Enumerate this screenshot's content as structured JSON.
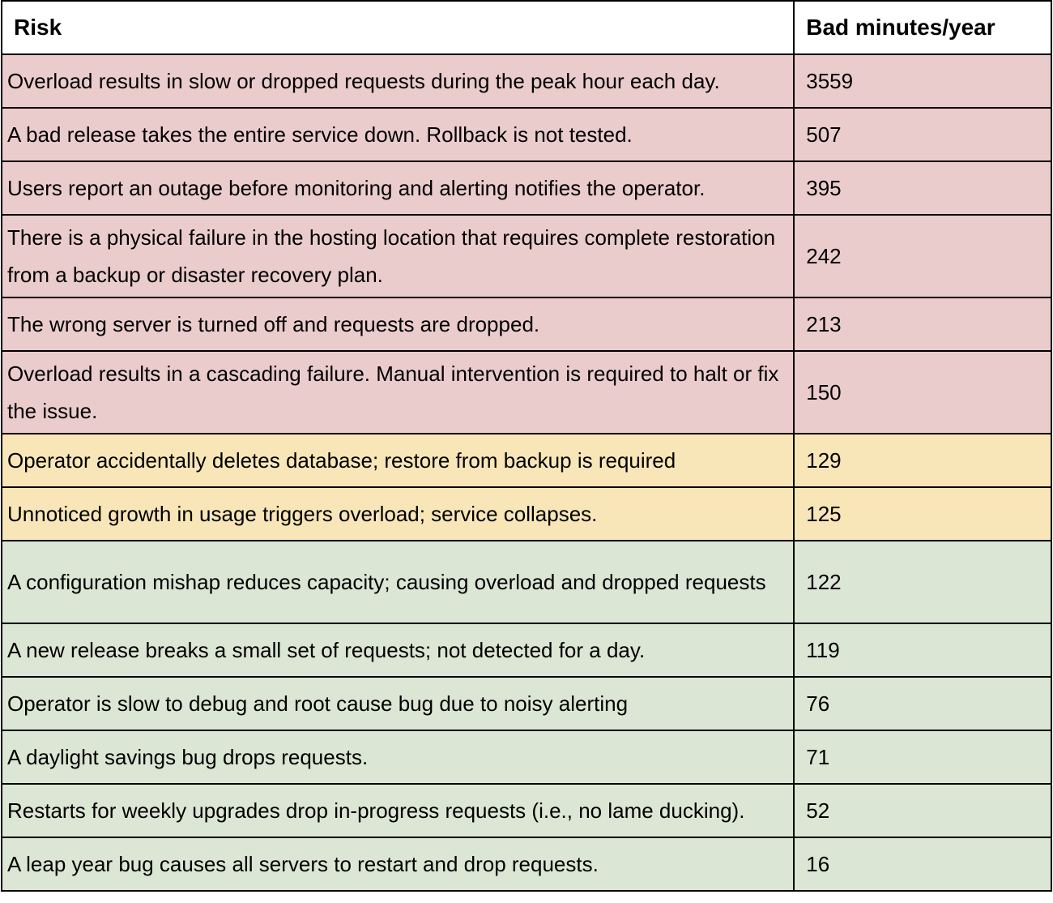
{
  "header": {
    "risk": "Risk",
    "value": "Bad minutes/year"
  },
  "colors": {
    "red": "#ebcccc",
    "yellow": "#f8e6b8",
    "green": "#dce6d4"
  },
  "rows": [
    {
      "risk": "Overload results in slow or dropped requests during the peak hour each day.",
      "value": "3559",
      "level": "red"
    },
    {
      "risk": "A bad release takes the entire service down. Rollback is not tested.",
      "value": "507",
      "level": "red"
    },
    {
      "risk": "Users report an outage before monitoring and alerting notifies the operator.",
      "value": "395",
      "level": "red"
    },
    {
      "risk": "There is a physical failure in the hosting location that requires complete restoration from a backup or disaster recovery plan.",
      "value": "242",
      "level": "red"
    },
    {
      "risk": "The wrong server is turned off and requests are dropped.",
      "value": "213",
      "level": "red"
    },
    {
      "risk": "Overload results in a cascading failure. Manual intervention is required to halt or fix the issue.",
      "value": "150",
      "level": "red"
    },
    {
      "risk": "Operator accidentally deletes database; restore from backup is required",
      "value": "129",
      "level": "yellow"
    },
    {
      "risk": "Unnoticed growth in usage triggers overload; service collapses.",
      "value": "125",
      "level": "yellow"
    },
    {
      "risk": "A configuration mishap reduces capacity; causing overload and dropped requests",
      "value": "122",
      "level": "green"
    },
    {
      "risk": "A new release breaks a small set of requests; not detected for a day.",
      "value": "119",
      "level": "green"
    },
    {
      "risk": "Operator is slow to debug and root cause bug due to noisy alerting",
      "value": "76",
      "level": "green"
    },
    {
      "risk": "A daylight savings bug drops requests.",
      "value": "71",
      "level": "green"
    },
    {
      "risk": "Restarts for weekly upgrades drop in-progress requests (i.e., no lame ducking).",
      "value": "52",
      "level": "green"
    },
    {
      "risk": "A leap year bug causes all servers to restart and drop requests.",
      "value": "16",
      "level": "green"
    }
  ]
}
